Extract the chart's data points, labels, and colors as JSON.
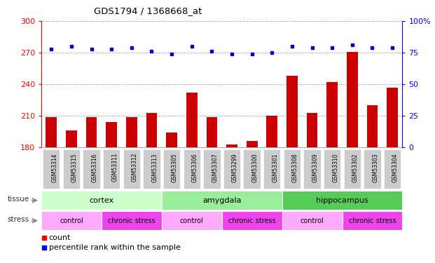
{
  "title": "GDS1794 / 1368668_at",
  "samples": [
    "GSM53314",
    "GSM53315",
    "GSM53316",
    "GSM53311",
    "GSM53312",
    "GSM53313",
    "GSM53305",
    "GSM53306",
    "GSM53307",
    "GSM53299",
    "GSM53300",
    "GSM53301",
    "GSM53308",
    "GSM53309",
    "GSM53310",
    "GSM53302",
    "GSM53303",
    "GSM53304"
  ],
  "bar_values": [
    209,
    196,
    209,
    204,
    209,
    213,
    194,
    232,
    209,
    183,
    186,
    210,
    248,
    213,
    242,
    271,
    220,
    237
  ],
  "dot_values": [
    78,
    80,
    78,
    78,
    79,
    76,
    74,
    80,
    76,
    74,
    74,
    75,
    80,
    79,
    79,
    81,
    79,
    79
  ],
  "ylim_left": [
    180,
    300
  ],
  "ylim_right": [
    0,
    100
  ],
  "yticks_left": [
    180,
    210,
    240,
    270,
    300
  ],
  "yticks_right": [
    0,
    25,
    50,
    75,
    100
  ],
  "tissue_groups": [
    {
      "label": "cortex",
      "start": 0,
      "end": 6,
      "color": "#ccffcc"
    },
    {
      "label": "amygdala",
      "start": 6,
      "end": 12,
      "color": "#99ee99"
    },
    {
      "label": "hippocampus",
      "start": 12,
      "end": 18,
      "color": "#55cc55"
    }
  ],
  "stress_groups": [
    {
      "label": "control",
      "start": 0,
      "end": 3,
      "color": "#ffaaff"
    },
    {
      "label": "chronic stress",
      "start": 3,
      "end": 6,
      "color": "#ee44ee"
    },
    {
      "label": "control",
      "start": 6,
      "end": 9,
      "color": "#ffaaff"
    },
    {
      "label": "chronic stress",
      "start": 9,
      "end": 12,
      "color": "#ee44ee"
    },
    {
      "label": "control",
      "start": 12,
      "end": 15,
      "color": "#ffaaff"
    },
    {
      "label": "chronic stress",
      "start": 15,
      "end": 18,
      "color": "#ee44ee"
    }
  ],
  "bar_color": "#cc0000",
  "dot_color": "#0000cc",
  "bar_width": 0.55,
  "xlabel_bg": "#cccccc",
  "row_label_color": "#333333",
  "tissue_label_colors": [
    "#ccffcc",
    "#99ee99",
    "#55cc55"
  ],
  "stress_light_color": "#ffaaff",
  "stress_dark_color": "#ee44ee"
}
